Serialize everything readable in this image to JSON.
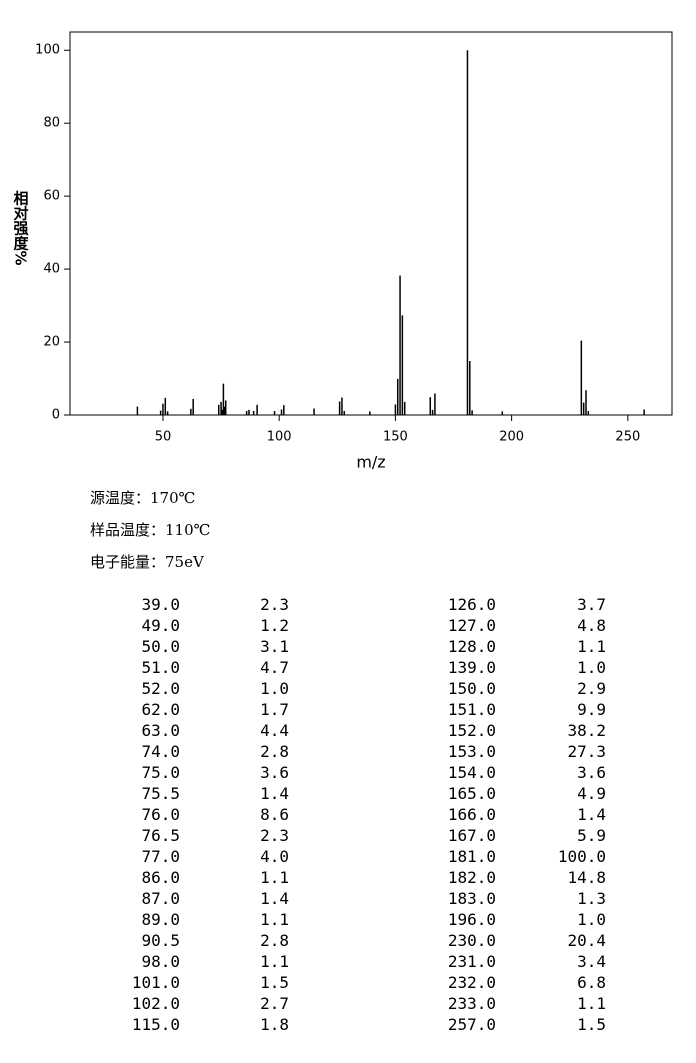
{
  "chart_data": {
    "type": "bar",
    "xlabel": "m/z",
    "ylabel": "相对强度%",
    "x": [
      39,
      49,
      50,
      51,
      52,
      62,
      63,
      74,
      75,
      75.5,
      76,
      76.5,
      77,
      86,
      87,
      89,
      90.5,
      98,
      101,
      102,
      115,
      126,
      127,
      128,
      139,
      150,
      151,
      152,
      153,
      154,
      165,
      166,
      167,
      181,
      182,
      183,
      196,
      230,
      231,
      232,
      233,
      257
    ],
    "values": [
      2.3,
      1.2,
      3.1,
      4.7,
      1.0,
      1.7,
      4.4,
      2.8,
      3.6,
      1.4,
      8.6,
      2.3,
      4.0,
      1.1,
      1.4,
      1.1,
      2.8,
      1.1,
      1.5,
      2.7,
      1.8,
      3.7,
      4.8,
      1.1,
      1.0,
      2.9,
      9.9,
      38.2,
      27.3,
      3.6,
      4.9,
      1.4,
      5.9,
      100.0,
      14.8,
      1.3,
      1.0,
      20.4,
      3.4,
      6.8,
      1.1,
      1.5
    ],
    "color": "#000000",
    "xlim": [
      10,
      269
    ],
    "ylim": [
      0,
      105
    ],
    "xticks": [
      50,
      100,
      150,
      200,
      250
    ],
    "yticks": [
      0,
      20,
      40,
      60,
      80,
      100
    ]
  },
  "info": [
    "源温度：170℃",
    "样品温度：110℃",
    "电子能量：75eV"
  ],
  "table": {
    "rows": [
      [
        "39.0",
        "2.3",
        "126.0",
        "3.7"
      ],
      [
        "49.0",
        "1.2",
        "127.0",
        "4.8"
      ],
      [
        "50.0",
        "3.1",
        "128.0",
        "1.1"
      ],
      [
        "51.0",
        "4.7",
        "139.0",
        "1.0"
      ],
      [
        "52.0",
        "1.0",
        "150.0",
        "2.9"
      ],
      [
        "62.0",
        "1.7",
        "151.0",
        "9.9"
      ],
      [
        "63.0",
        "4.4",
        "152.0",
        "38.2"
      ],
      [
        "74.0",
        "2.8",
        "153.0",
        "27.3"
      ],
      [
        "75.0",
        "3.6",
        "154.0",
        "3.6"
      ],
      [
        "75.5",
        "1.4",
        "165.0",
        "4.9"
      ],
      [
        "76.0",
        "8.6",
        "166.0",
        "1.4"
      ],
      [
        "76.5",
        "2.3",
        "167.0",
        "5.9"
      ],
      [
        "77.0",
        "4.0",
        "181.0",
        "100.0"
      ],
      [
        "86.0",
        "1.1",
        "182.0",
        "14.8"
      ],
      [
        "87.0",
        "1.4",
        "183.0",
        "1.3"
      ],
      [
        "89.0",
        "1.1",
        "196.0",
        "1.0"
      ],
      [
        "90.5",
        "2.8",
        "230.0",
        "20.4"
      ],
      [
        "98.0",
        "1.1",
        "231.0",
        "3.4"
      ],
      [
        "101.0",
        "1.5",
        "232.0",
        "6.8"
      ],
      [
        "102.0",
        "2.7",
        "233.0",
        "1.1"
      ],
      [
        "115.0",
        "1.8",
        "257.0",
        "1.5"
      ]
    ]
  }
}
